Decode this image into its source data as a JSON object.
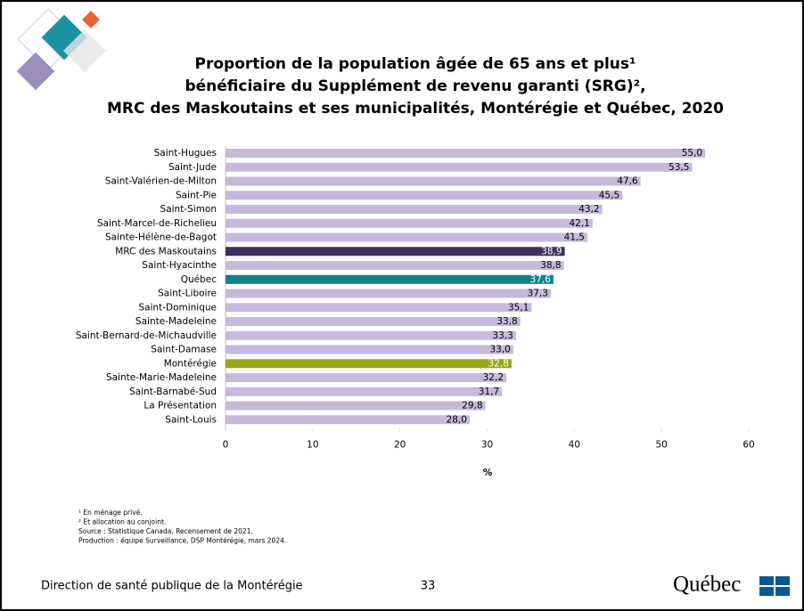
{
  "chart_data": {
    "type": "barh",
    "title": [
      "Proportion de la population âgée de 65 ans et plus¹",
      "bénéficiaire du Supplément de revenu garanti (SRG)²,",
      "MRC des Maskoutains et ses municipalités, Montérégie et Québec, 2020"
    ],
    "xlabel": "%",
    "categories": [
      "Saint-Hugues",
      "Saint-Jude",
      "Saint-Valérien-de-Milton",
      "Saint-Pie",
      "Saint-Simon",
      "Saint-Marcel-de-Richelieu",
      "Sainte-Hélène-de-Bagot",
      "MRC des Maskoutains",
      "Saint-Hyacinthe",
      "Québec",
      "Saint-Liboire",
      "Saint-Dominique",
      "Sainte-Madeleine",
      "Saint-Bernard-de-Michaudville",
      "Saint-Damase",
      "Montérégie",
      "Sainte-Marie-Madeleine",
      "Saint-Barnabé-Sud",
      "La Présentation",
      "Saint-Louis"
    ],
    "values": [
      55.0,
      53.5,
      47.6,
      45.5,
      43.2,
      42.1,
      41.5,
      38.9,
      38.8,
      37.6,
      37.3,
      35.1,
      33.8,
      33.3,
      33.0,
      32.8,
      32.2,
      31.7,
      29.8,
      28.0
    ],
    "value_labels": [
      "55,0",
      "53,5",
      "47,6",
      "45,5",
      "43,2",
      "42,1",
      "41,5",
      "38,9",
      "38,8",
      "37,6",
      "37,3",
      "35,1",
      "33,8",
      "33,3",
      "33,0",
      "32,8",
      "32,2",
      "31,7",
      "29,8",
      "28,0"
    ],
    "colors": [
      "#c8b8dc",
      "#c8b8dc",
      "#c8b8dc",
      "#c8b8dc",
      "#c8b8dc",
      "#c8b8dc",
      "#c8b8dc",
      "#3e3158",
      "#c8b8dc",
      "#138189",
      "#c8b8dc",
      "#c8b8dc",
      "#c8b8dc",
      "#c8b8dc",
      "#c8b8dc",
      "#9aa61a",
      "#c8b8dc",
      "#c8b8dc",
      "#c8b8dc",
      "#c8b8dc"
    ],
    "xlim": [
      0,
      60
    ],
    "xticks": [
      0,
      10,
      20,
      30,
      40,
      50,
      60
    ]
  },
  "notes": [
    "¹ En ménage privé.",
    "² Et allocation au conjoint.",
    "Source : Statistique Canada, Recensement de 2021.",
    "Production : équipe Surveillance, DSP Montérégie, mars 2024."
  ],
  "footer": {
    "left": "Direction de santé publique de la Montérégie",
    "page": "33",
    "logo": "Québec"
  }
}
